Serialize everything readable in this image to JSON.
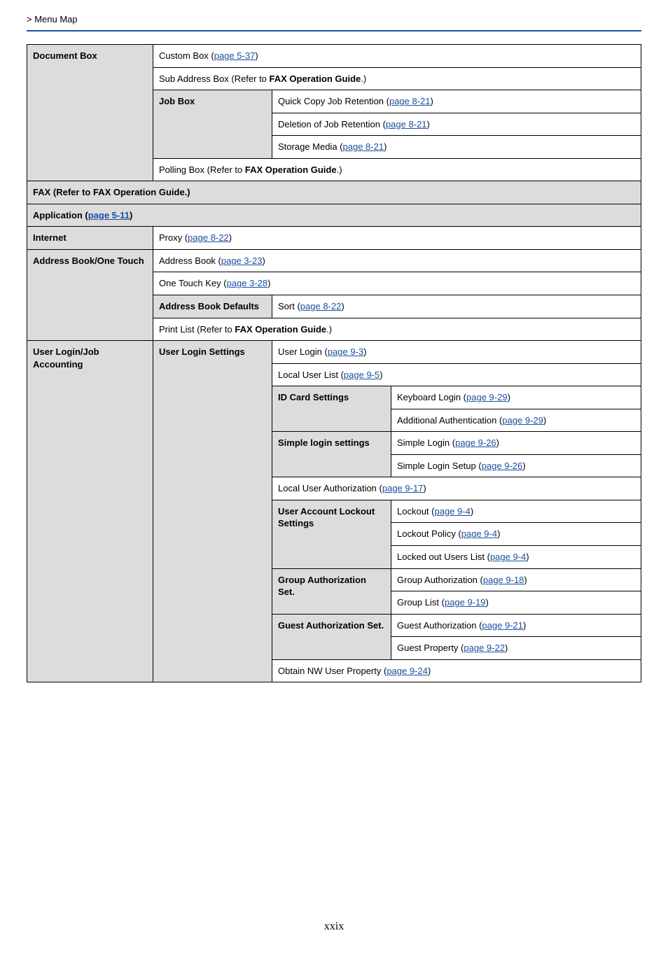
{
  "breadcrumb": " > Menu Map",
  "footer": "xxix",
  "rows": {
    "docbox_label": "Document Box",
    "custombox_pre": "Custom Box (",
    "custombox_link": "page 5-37",
    "custombox_post": ")",
    "subaddr_pre": "Sub Address Box (Refer to ",
    "subaddr_bold": "FAX Operation Guide",
    "subaddr_post": ".)",
    "jobbox_label": "Job Box",
    "quickcopy_pre": "Quick Copy Job Retention (",
    "quickcopy_link": "page 8-21",
    "quickcopy_post": ")",
    "deletion_pre": "Deletion of Job Retention (",
    "deletion_link": "page 8-21",
    "deletion_post": ")",
    "storage_pre": "Storage Media (",
    "storage_link": "page 8-21",
    "storage_post": ")",
    "polling_pre": "Polling Box (Refer to ",
    "polling_bold": "FAX Operation Guide",
    "polling_post": ".)",
    "faxrow_pre": "FAX (Refer to FAX Operation Guide.)",
    "app_pre": "Application (",
    "app_link": "page 5-11",
    "app_post": ")",
    "internet_label": "Internet",
    "proxy_pre": "Proxy (",
    "proxy_link": "page 8-22",
    "proxy_post": ")",
    "addrbook_label": "Address Book/One Touch",
    "addrbook_row_pre": "Address Book (",
    "addrbook_row_link": "page 3-23",
    "addrbook_row_post": ")",
    "onetouch_pre": "One Touch Key (",
    "onetouch_link": "page 3-28",
    "onetouch_post": ")",
    "addrbookdef_label": "Address Book Defaults",
    "sort_pre": "Sort (",
    "sort_link": "page 8-22",
    "sort_post": ")",
    "printlist_pre": "Print List (Refer to ",
    "printlist_bold": "FAX Operation Guide",
    "printlist_post": ".)",
    "userlogin_label": "User Login/Job Accounting",
    "userloginset_label": "User Login Settings",
    "userlogin_pre": "User Login (",
    "userlogin_link": "page 9-3",
    "userlogin_post": ")",
    "localuser_pre": "Local User List (",
    "localuser_link": "page 9-5",
    "localuser_post": ")",
    "idcard_label": "ID Card Settings",
    "keylogin_pre": "Keyboard Login (",
    "keylogin_link": "page 9-29",
    "keylogin_post": ")",
    "addauth_pre": "Additional Authentication (",
    "addauth_link": "page 9-29",
    "addauth_post": ")",
    "simple_label": "Simple login settings",
    "simplelogin_pre": "Simple Login (",
    "simplelogin_link": "page 9-26",
    "simplelogin_post": ")",
    "simplesetup_pre": "Simple Login Setup (",
    "simplesetup_link": "page 9-26",
    "simplesetup_post": ")",
    "localauth_pre": "Local User Authorization (",
    "localauth_link": "page 9-17",
    "localauth_post": ")",
    "useracct_label": "User Account Lockout Settings",
    "lockout_pre": "Lockout (",
    "lockout_link": "page 9-4",
    "lockout_post": ")",
    "lockoutpol_pre": "Lockout Policy (",
    "lockoutpol_link": "page 9-4",
    "lockoutpol_post": ")",
    "lockedusers_pre": "Locked out Users List (",
    "lockedusers_link": "page 9-4",
    "lockedusers_post": ")",
    "groupauth_label": "Group Authorization Set.",
    "groupauth_pre": "Group Authorization (",
    "groupauth_link": "page 9-18",
    "groupauth_post": ")",
    "grouplist_pre": "Group List (",
    "grouplist_link": "page 9-19",
    "grouplist_post": ")",
    "guestauth_label": "Guest Authorization Set.",
    "guestauth_pre": "Guest  Authorization (",
    "guestauth_link": "page 9-21",
    "guestauth_post": ")",
    "guestprop_pre": "Guest Property (",
    "guestprop_link": "page 9-22",
    "guestprop_post": ")",
    "obtainnw_pre": "Obtain NW User Property (",
    "obtainnw_link": "page 9-24",
    "obtainnw_post": ")"
  }
}
